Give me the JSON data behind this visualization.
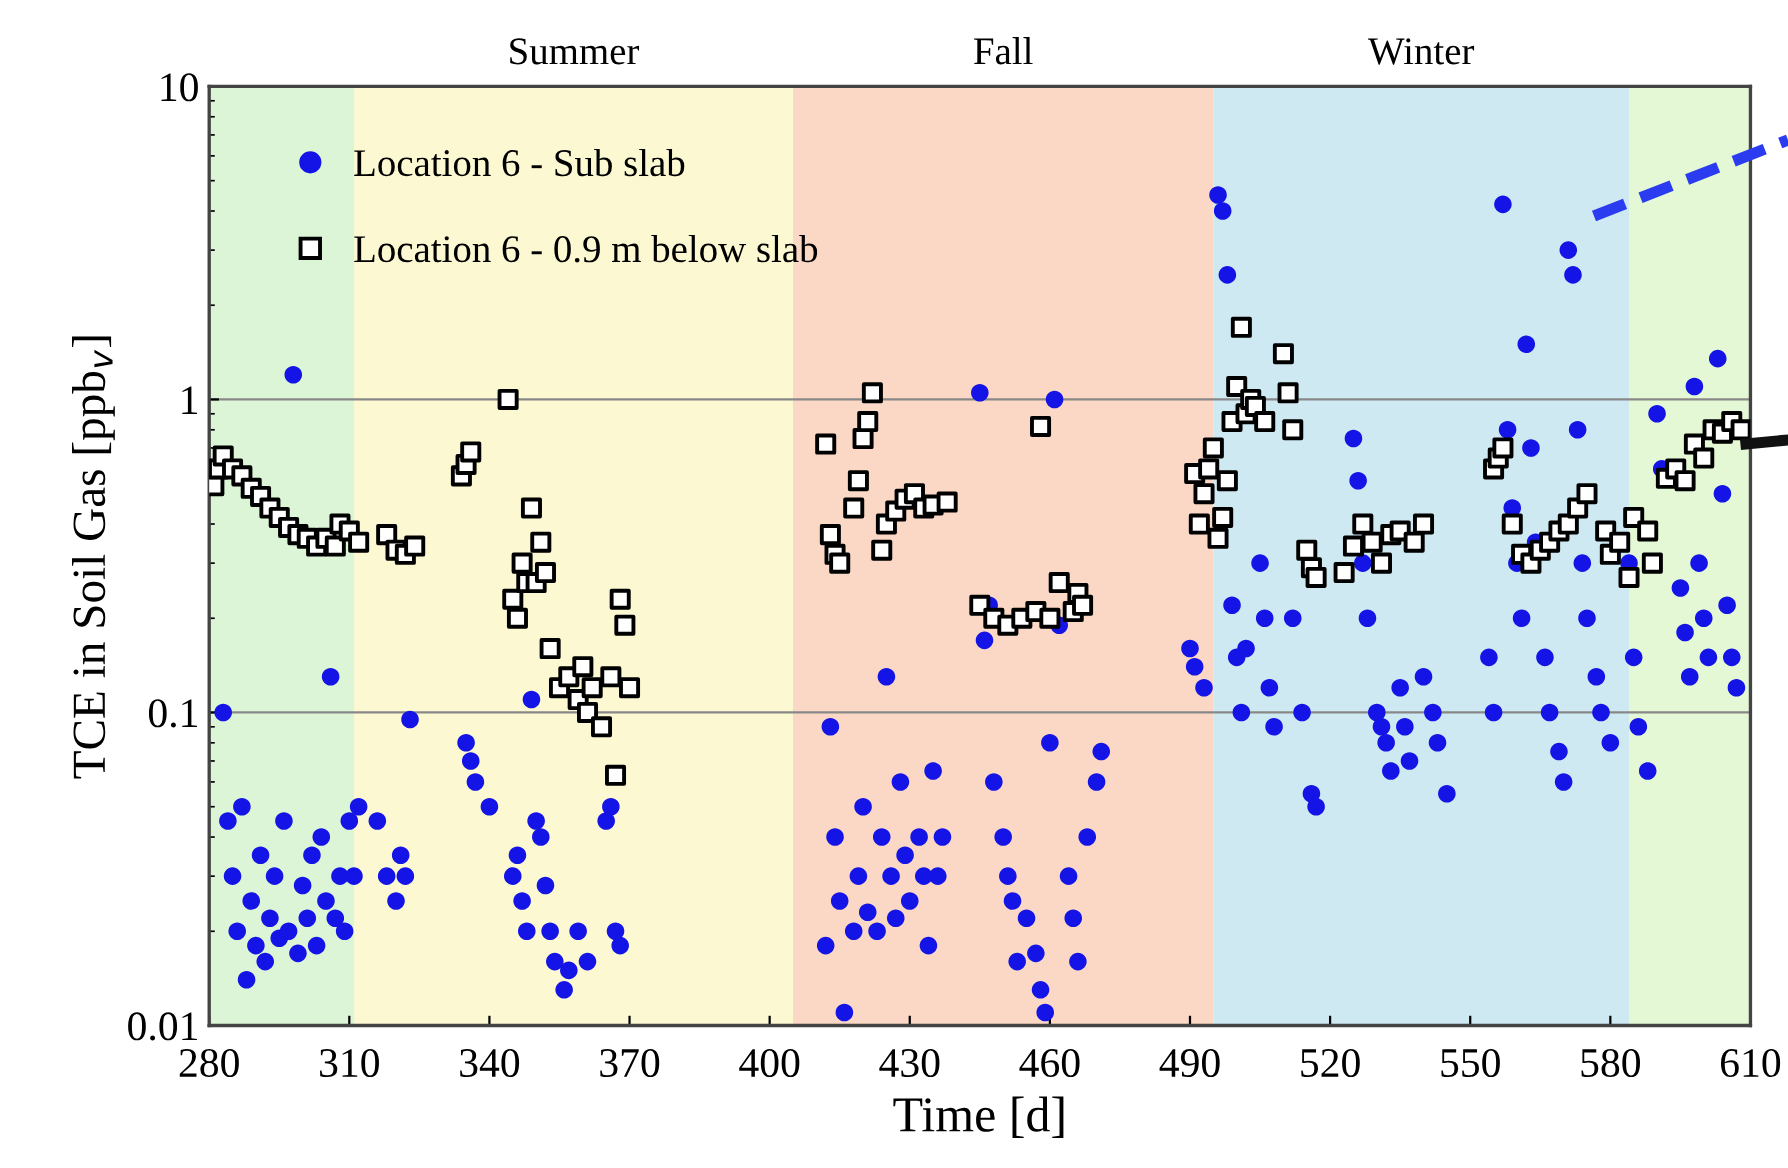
{
  "chart_data": {
    "type": "scatter",
    "xlabel": "Time [d]",
    "ylabel": "TCE in Soil Gas [ppb$_{v}$]",
    "xlim": [
      280,
      610
    ],
    "xticks": [
      280,
      310,
      340,
      370,
      400,
      430,
      460,
      490,
      520,
      550,
      580,
      610
    ],
    "ylim": [
      0.01,
      10
    ],
    "yticks": [
      {
        "value": 0.01,
        "label": "0.01"
      },
      {
        "value": 0.1,
        "label": "0.1"
      },
      1,
      10
    ],
    "log": "y",
    "grid": "y",
    "legend": "top left",
    "bands": [
      {
        "axis": "x",
        "from": 280,
        "to": 311,
        "label": null,
        "color": "#dcf5d6"
      },
      {
        "axis": "x",
        "from": 311,
        "to": 405,
        "label": "Summer",
        "color": "#fcf9d2"
      },
      {
        "axis": "x",
        "from": 405,
        "to": 495,
        "label": "Fall",
        "color": "#fad8c5"
      },
      {
        "axis": "x",
        "from": 495,
        "to": 584,
        "label": "Winter",
        "color": "#cfe9f2"
      },
      {
        "axis": "x",
        "from": 584,
        "to": 610,
        "label": null,
        "color": "#e4f8d6"
      }
    ],
    "series": [
      {
        "name": "Location 6 - Sub slab",
        "color": "#1414e6",
        "marker": "circle",
        "x": [
          283,
          284,
          285,
          286,
          287,
          288,
          289,
          290,
          291,
          292,
          293,
          294,
          295,
          296,
          297,
          298,
          299,
          300,
          301,
          302,
          303,
          304,
          305,
          306,
          307,
          308,
          309,
          310,
          311,
          312,
          316,
          318,
          320,
          321,
          322,
          323,
          335,
          336,
          337,
          340,
          345,
          346,
          347,
          348,
          349,
          350,
          351,
          352,
          353,
          354,
          356,
          357,
          359,
          361,
          365,
          366,
          367,
          368,
          412,
          413,
          414,
          415,
          416,
          418,
          419,
          420,
          421,
          423,
          424,
          425,
          426,
          427,
          428,
          429,
          430,
          432,
          433,
          434,
          435,
          436,
          437,
          445,
          446,
          447,
          448,
          450,
          451,
          452,
          453,
          455,
          457,
          458,
          459,
          460,
          461,
          462,
          464,
          465,
          466,
          468,
          470,
          471,
          490,
          491,
          493,
          496,
          497,
          498,
          499,
          500,
          501,
          502,
          505,
          506,
          507,
          508,
          512,
          514,
          516,
          517,
          525,
          526,
          527,
          528,
          530,
          531,
          532,
          533,
          535,
          536,
          537,
          540,
          542,
          543,
          545,
          554,
          555,
          557,
          558,
          559,
          560,
          561,
          562,
          563,
          564,
          566,
          567,
          569,
          570,
          571,
          572,
          573,
          574,
          575,
          577,
          578,
          580,
          584,
          585,
          586,
          588,
          590,
          591,
          595,
          596,
          597,
          598,
          599,
          600,
          601,
          603,
          604,
          605,
          606,
          607
        ],
        "values": [
          0.1,
          0.045,
          0.03,
          0.02,
          0.05,
          0.014,
          0.025,
          0.018,
          0.035,
          0.016,
          0.022,
          0.03,
          0.019,
          0.045,
          0.02,
          1.2,
          0.017,
          0.028,
          0.022,
          0.035,
          0.018,
          0.04,
          0.025,
          0.13,
          0.022,
          0.03,
          0.02,
          0.045,
          0.03,
          0.05,
          0.045,
          0.03,
          0.025,
          0.035,
          0.03,
          0.095,
          0.08,
          0.07,
          0.06,
          0.05,
          0.03,
          0.035,
          0.025,
          0.02,
          0.11,
          0.045,
          0.04,
          0.028,
          0.02,
          0.016,
          0.013,
          0.015,
          0.02,
          0.016,
          0.045,
          0.05,
          0.02,
          0.018,
          0.018,
          0.09,
          0.04,
          0.025,
          0.011,
          0.02,
          0.03,
          0.05,
          0.023,
          0.02,
          0.04,
          0.13,
          0.03,
          0.022,
          0.06,
          0.035,
          0.025,
          0.04,
          0.03,
          0.018,
          0.065,
          0.03,
          0.04,
          1.05,
          0.17,
          0.22,
          0.06,
          0.04,
          0.03,
          0.025,
          0.016,
          0.022,
          0.017,
          0.013,
          0.011,
          0.08,
          1.0,
          0.19,
          0.03,
          0.022,
          0.016,
          0.04,
          0.06,
          0.075,
          0.16,
          0.14,
          0.12,
          4.5,
          4.0,
          2.5,
          0.22,
          0.15,
          0.1,
          0.16,
          0.3,
          0.2,
          0.12,
          0.09,
          0.2,
          0.1,
          0.055,
          0.05,
          0.75,
          0.55,
          0.3,
          0.2,
          0.1,
          0.09,
          0.08,
          0.065,
          0.12,
          0.09,
          0.07,
          0.13,
          0.1,
          0.08,
          0.055,
          0.15,
          0.1,
          4.2,
          0.8,
          0.45,
          0.3,
          0.2,
          1.5,
          0.7,
          0.35,
          0.15,
          0.1,
          0.075,
          0.06,
          3.0,
          2.5,
          0.8,
          0.3,
          0.2,
          0.13,
          0.1,
          0.08,
          0.3,
          0.15,
          0.09,
          0.065,
          0.9,
          0.6,
          0.25,
          0.18,
          0.13,
          1.1,
          0.3,
          0.2,
          0.15,
          1.35,
          0.5,
          0.22,
          0.15,
          0.12
        ]
      },
      {
        "name": "Location 6 - 0.9 m below slab",
        "color": "#000000",
        "marker": "square",
        "x": [
          281,
          282,
          283,
          285,
          287,
          289,
          291,
          293,
          295,
          297,
          299,
          301,
          303,
          305,
          307,
          308,
          310,
          312,
          318,
          320,
          322,
          324,
          334,
          335,
          336,
          344,
          345,
          346,
          347,
          348,
          349,
          350,
          351,
          352,
          353,
          355,
          357,
          359,
          360,
          361,
          362,
          364,
          366,
          367,
          368,
          369,
          370,
          412,
          413,
          414,
          415,
          418,
          419,
          420,
          421,
          422,
          424,
          425,
          427,
          429,
          431,
          433,
          435,
          438,
          445,
          448,
          451,
          454,
          457,
          458,
          460,
          462,
          465,
          466,
          467,
          491,
          492,
          493,
          494,
          495,
          496,
          497,
          498,
          499,
          500,
          501,
          502,
          503,
          504,
          506,
          510,
          511,
          512,
          515,
          516,
          517,
          523,
          525,
          527,
          529,
          531,
          533,
          535,
          538,
          540,
          555,
          556,
          557,
          559,
          561,
          563,
          565,
          567,
          569,
          571,
          573,
          575,
          579,
          580,
          582,
          584,
          585,
          588,
          589,
          592,
          594,
          596,
          598,
          600,
          602,
          604,
          606,
          608
        ],
        "values": [
          0.53,
          0.6,
          0.66,
          0.6,
          0.57,
          0.52,
          0.49,
          0.45,
          0.42,
          0.39,
          0.37,
          0.36,
          0.34,
          0.36,
          0.34,
          0.4,
          0.38,
          0.35,
          0.37,
          0.33,
          0.32,
          0.34,
          0.57,
          0.62,
          0.68,
          1.0,
          0.23,
          0.2,
          0.3,
          0.26,
          0.45,
          0.26,
          0.35,
          0.28,
          0.16,
          0.12,
          0.13,
          0.11,
          0.14,
          0.1,
          0.12,
          0.09,
          0.13,
          0.063,
          0.23,
          0.19,
          0.12,
          0.72,
          0.37,
          0.32,
          0.3,
          0.45,
          0.55,
          0.75,
          0.85,
          1.05,
          0.33,
          0.4,
          0.44,
          0.48,
          0.5,
          0.45,
          0.46,
          0.47,
          0.22,
          0.2,
          0.19,
          0.2,
          0.21,
          0.82,
          0.2,
          0.26,
          0.21,
          0.24,
          0.22,
          0.58,
          0.4,
          0.5,
          0.6,
          0.7,
          0.36,
          0.42,
          0.55,
          0.85,
          1.1,
          1.7,
          0.9,
          1.0,
          0.95,
          0.85,
          1.4,
          1.05,
          0.8,
          0.33,
          0.29,
          0.27,
          0.28,
          0.34,
          0.4,
          0.35,
          0.3,
          0.37,
          0.38,
          0.35,
          0.4,
          0.6,
          0.65,
          0.7,
          0.4,
          0.32,
          0.3,
          0.33,
          0.35,
          0.38,
          0.4,
          0.45,
          0.5,
          0.38,
          0.32,
          0.35,
          0.27,
          0.42,
          0.38,
          0.3,
          0.56,
          0.6,
          0.55,
          0.72,
          0.65,
          0.8,
          0.78,
          0.85,
          0.8
        ]
      }
    ]
  }
}
